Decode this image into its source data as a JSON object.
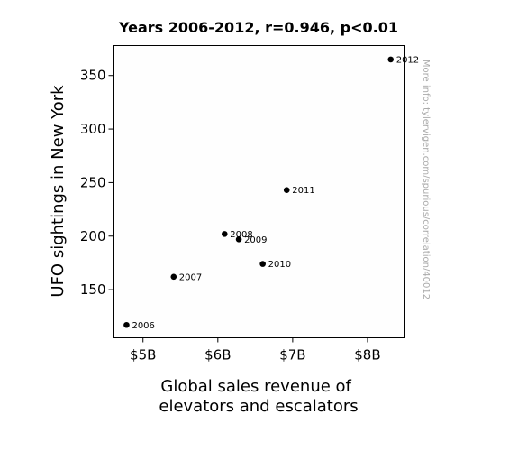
{
  "chart_data": {
    "type": "scatter",
    "title": "Years 2006-2012, r=0.946, p<0.01",
    "xlabel_lines": [
      "Global sales revenue of",
      "elevators and escalators"
    ],
    "ylabel": "UFO sightings in New York",
    "x_unit": "billion USD",
    "xlim": [
      4.6,
      8.5
    ],
    "ylim": [
      105,
      378
    ],
    "x_ticks": [
      {
        "value": 5,
        "label": "$5B"
      },
      {
        "value": 6,
        "label": "$6B"
      },
      {
        "value": 7,
        "label": "$7B"
      },
      {
        "value": 8,
        "label": "$8B"
      }
    ],
    "y_ticks": [
      {
        "value": 150,
        "label": "150"
      },
      {
        "value": 200,
        "label": "200"
      },
      {
        "value": 250,
        "label": "250"
      },
      {
        "value": 300,
        "label": "300"
      },
      {
        "value": 350,
        "label": "350"
      }
    ],
    "grid": false,
    "legend": "none",
    "point_color": "#000000",
    "points": [
      {
        "label": "2006",
        "x": 4.78,
        "y": 117
      },
      {
        "label": "2007",
        "x": 5.41,
        "y": 162
      },
      {
        "label": "2008",
        "x": 6.09,
        "y": 202
      },
      {
        "label": "2009",
        "x": 6.28,
        "y": 197
      },
      {
        "label": "2010",
        "x": 6.6,
        "y": 174
      },
      {
        "label": "2011",
        "x": 6.92,
        "y": 243
      },
      {
        "label": "2012",
        "x": 8.31,
        "y": 365
      }
    ]
  },
  "watermark": "More info: tylervigen.com/spurious/correlation/40012"
}
